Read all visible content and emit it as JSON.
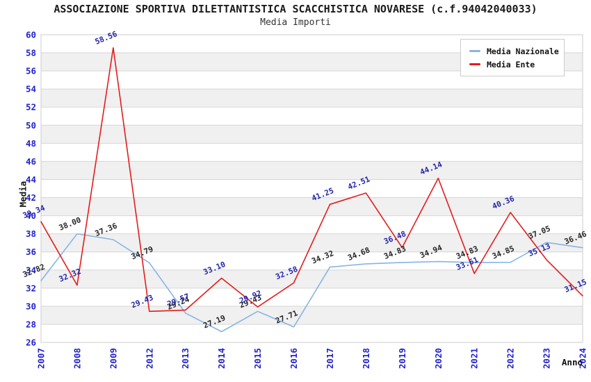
{
  "header": {
    "title": "ASSOCIAZIONE SPORTIVA DILETTANTISTICA SCACCHISTICA NOVARESE (c.f.94042040033)",
    "subtitle": "Media Importi"
  },
  "chart_data": {
    "type": "line",
    "title": "ASSOCIAZIONE SPORTIVA DILETTANTISTICA SCACCHISTICA NOVARESE (c.f.94042040033)",
    "subtitle": "Media Importi",
    "xlabel": "Anno",
    "ylabel": "Media",
    "categories": [
      "2007",
      "2008",
      "2009",
      "2012",
      "2013",
      "2014",
      "2015",
      "2016",
      "2017",
      "2018",
      "2019",
      "2020",
      "2021",
      "2022",
      "2023",
      "2024"
    ],
    "series": [
      {
        "name": "Media Nazionale",
        "color": "#85B5E5",
        "label_color": "#262626",
        "values": [
          32.82,
          38.0,
          37.36,
          34.79,
          29.24,
          27.19,
          29.43,
          27.71,
          34.32,
          34.68,
          34.83,
          34.94,
          34.83,
          34.85,
          37.05,
          36.46
        ]
      },
      {
        "name": "Media Ente",
        "color": "#E41B1B",
        "label_color": "#2525AA",
        "values": [
          39.34,
          32.32,
          58.56,
          29.43,
          29.57,
          33.1,
          29.92,
          32.58,
          41.25,
          42.51,
          36.48,
          44.14,
          33.61,
          40.36,
          35.13,
          31.15
        ]
      }
    ],
    "ylim": [
      26,
      60
    ],
    "y_ticks": [
      26,
      28,
      30,
      32,
      34,
      36,
      38,
      40,
      42,
      44,
      46,
      48,
      50,
      52,
      54,
      56,
      58,
      60
    ],
    "grid": true,
    "legend_position": "top-right",
    "band_colors": [
      "#ffffff",
      "#f0f0f0"
    ],
    "gridline_color": "#d6d6d6",
    "plot_border_color": "#cccccc",
    "tick_label_color": "#2222CC"
  }
}
